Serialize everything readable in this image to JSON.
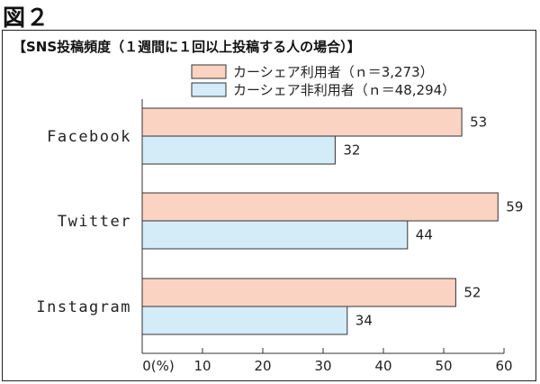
{
  "figure_label": "図２",
  "chart_data": {
    "type": "bar",
    "orientation": "horizontal",
    "title": "【SNS投稿頻度（１週間に１回以上投稿する人の場合）】",
    "categories": [
      "Facebook",
      "Twitter",
      "Instagram"
    ],
    "series": [
      {
        "name": "カーシェア利用者（ｎ＝3,273）",
        "values": [
          53,
          59,
          52
        ],
        "color": "#fbd3c2"
      },
      {
        "name": "カーシェア非利用者（ｎ＝48,294）",
        "values": [
          32,
          44,
          34
        ],
        "color": "#d3ecf8"
      }
    ],
    "xlim": [
      0,
      60
    ],
    "xticks": [
      0,
      10,
      20,
      30,
      40,
      50,
      60
    ],
    "xtick_labels": [
      "0(%)",
      "10",
      "20",
      "30",
      "40",
      "50",
      "60"
    ],
    "legend_position": "top-right",
    "grid": false
  }
}
